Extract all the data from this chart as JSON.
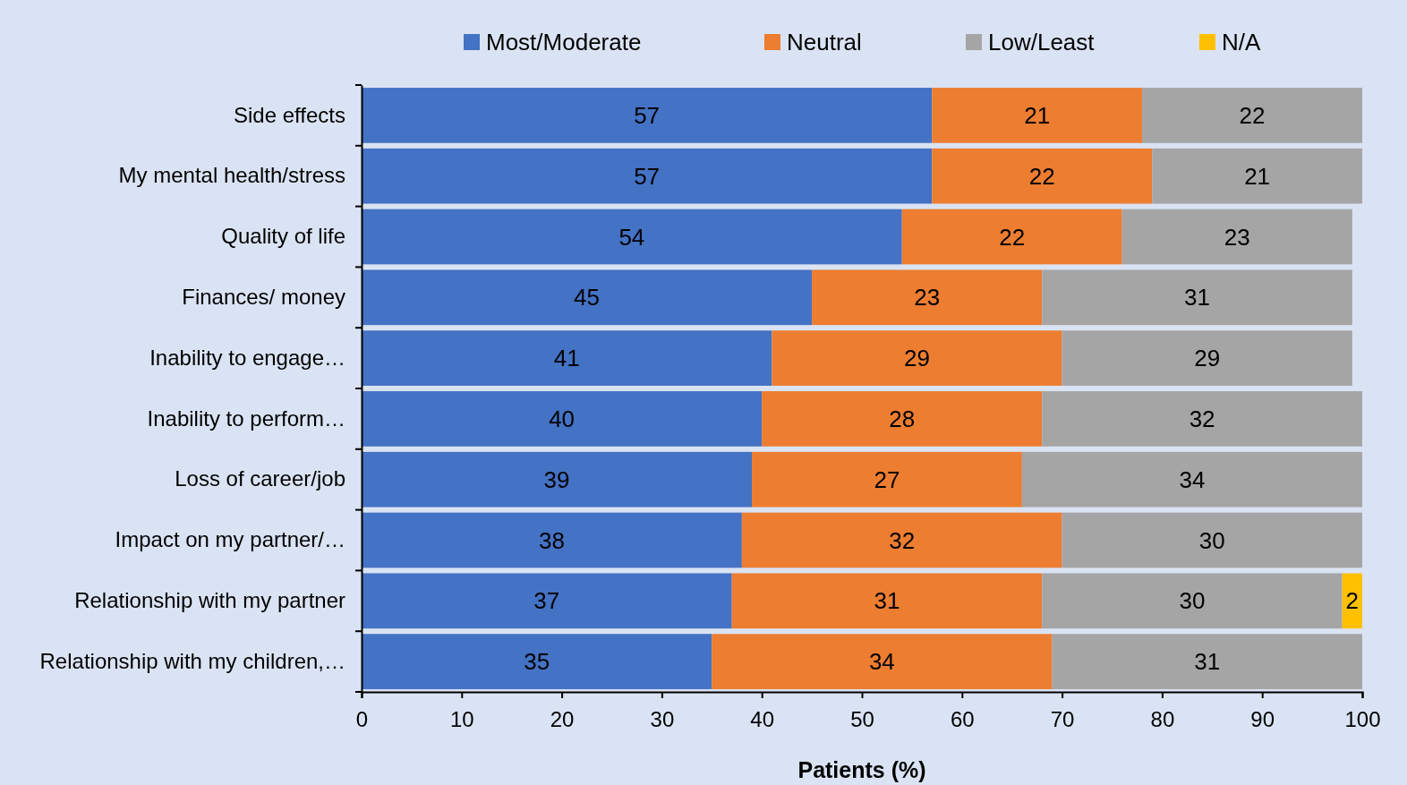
{
  "chart_data": {
    "type": "bar",
    "orientation": "horizontal",
    "stacked": true,
    "data_labels": true,
    "legend": "top",
    "grid": false,
    "xlabel": "Patients (%)",
    "categories": [
      "Side effects",
      "My mental health/stress",
      "Quality of life",
      "Finances/ money",
      "Inability to engage…",
      "Inability to perform…",
      "Loss of career/job",
      "Impact on my partner/…",
      "Relationship with my partner",
      "Relationship with my children,…"
    ],
    "xlim": [
      0,
      100
    ],
    "xticks": [
      0,
      10,
      20,
      30,
      40,
      50,
      60,
      70,
      80,
      90,
      100
    ],
    "series": [
      {
        "name": "Most/Moderate",
        "color": "#4472c4",
        "values": [
          57,
          57,
          54,
          45,
          41,
          40,
          39,
          38,
          37,
          35
        ]
      },
      {
        "name": "Neutral",
        "color": "#ed7d31",
        "values": [
          21,
          22,
          22,
          23,
          29,
          28,
          27,
          32,
          31,
          34
        ]
      },
      {
        "name": "Low/Least",
        "color": "#a5a5a5",
        "values": [
          22,
          21,
          23,
          31,
          29,
          32,
          34,
          30,
          30,
          31
        ]
      },
      {
        "name": "N/A",
        "color": "#ffc000",
        "values": [
          null,
          null,
          null,
          null,
          null,
          null,
          null,
          null,
          2,
          null
        ]
      }
    ]
  }
}
